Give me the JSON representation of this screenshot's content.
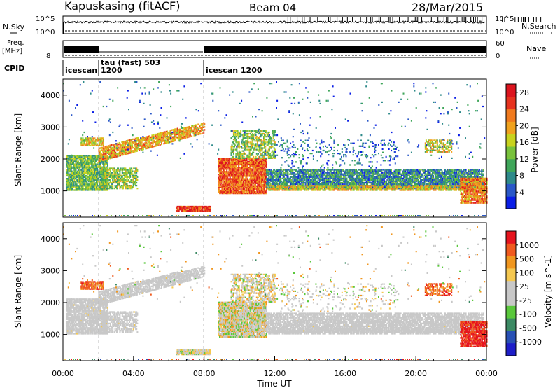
{
  "header": {
    "station": "Kapuskasing (fitACF)",
    "beam": "Beam 04",
    "date": "28/Mar/2015"
  },
  "strip_labels": {
    "nsky": "N.Sky",
    "nsky_tick_high": "10^5",
    "nsky_tick_low": "10^0",
    "nsearch": "N.Search",
    "nsearch_tick_high": "10^5",
    "nsearch_tick_low": "10^0",
    "freq_line1": "Freq.",
    "freq_line2": "[MHz]",
    "freq_tick_low": "8",
    "nave": "Nave",
    "nave_tick_high": "60",
    "nave_tick_low": "0",
    "cpid": "CPID"
  },
  "cpid_segments": [
    {
      "label": "icescan",
      "sublabel": "",
      "start_hour": 0
    },
    {
      "label": "tau (fast) 503",
      "sublabel": "1200",
      "start_hour": 2
    },
    {
      "label": "icescan 1200",
      "sublabel": "",
      "start_hour": 8
    }
  ],
  "colors": {
    "power_scale": [
      "#0a1ee6",
      "#2a58c8",
      "#2e8a8a",
      "#3fa65a",
      "#79c23c",
      "#c8d21e",
      "#f0a21e",
      "#f07a1e",
      "#e6321e",
      "#dc141e"
    ],
    "velocity_scale": [
      "#e6141e",
      "#f05a1e",
      "#f0961e",
      "#f5c850",
      "#c8c8c8",
      "#c8c8c8",
      "#5ac83c",
      "#3c8a64",
      "#2850b4",
      "#1e1ec8"
    ],
    "ground_gray": "#c8c8c8"
  },
  "chart_data": [
    {
      "type": "heatmap",
      "title": "Power",
      "xlabel": "",
      "ylabel": "Slant Range [km]",
      "xlim": [
        0,
        24
      ],
      "ylim": [
        180,
        4500
      ],
      "yticks": [
        "1000",
        "2000",
        "3000",
        "4000"
      ],
      "colorbar": {
        "label": "Power [dB]",
        "ticks": [
          "4",
          "8",
          "12",
          "16",
          "20",
          "24",
          "28"
        ],
        "range": [
          0,
          30
        ]
      }
    },
    {
      "type": "heatmap",
      "title": "Velocity",
      "xlabel": "Time UT",
      "ylabel": "Slant Range [km]",
      "xlim": [
        0,
        24
      ],
      "ylim": [
        180,
        4500
      ],
      "xticks": [
        "00:00",
        "04:00",
        "08:00",
        "12:00",
        "16:00",
        "20:00",
        "00:00"
      ],
      "yticks": [
        "1000",
        "2000",
        "3000",
        "4000"
      ],
      "colorbar": {
        "label": "Velocity [m s^-1]",
        "ticks": [
          "1000",
          "500",
          "100",
          "25",
          "-25",
          "-100",
          "-500",
          "-1000"
        ]
      }
    }
  ]
}
